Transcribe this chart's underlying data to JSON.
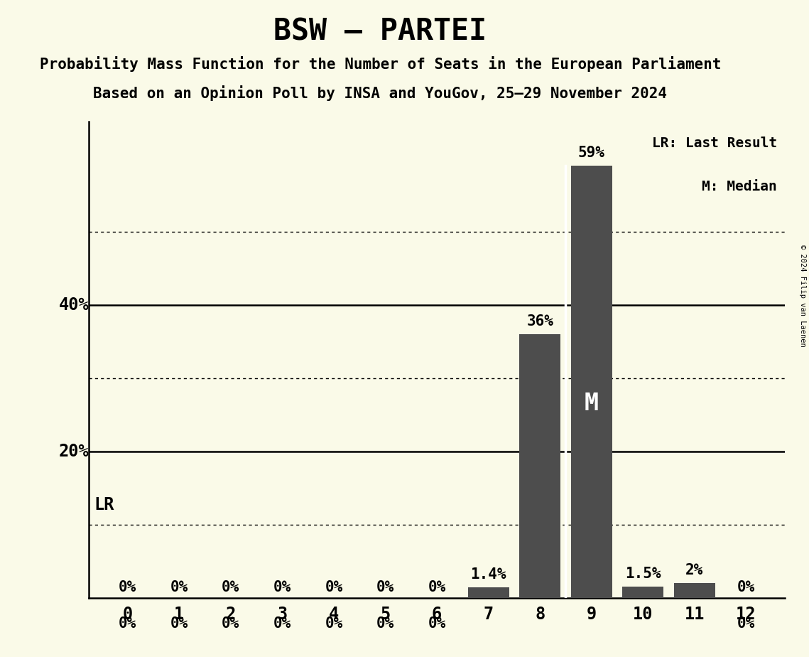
{
  "title": "BSW – PARTEI",
  "subtitle1": "Probability Mass Function for the Number of Seats in the European Parliament",
  "subtitle2": "Based on an Opinion Poll by INSA and YouGov, 25–29 November 2024",
  "copyright": "© 2024 Filip van Laenen",
  "categories": [
    0,
    1,
    2,
    3,
    4,
    5,
    6,
    7,
    8,
    9,
    10,
    11,
    12
  ],
  "values": [
    0.0,
    0.0,
    0.0,
    0.0,
    0.0,
    0.0,
    0.0,
    1.4,
    36.0,
    59.0,
    1.5,
    2.0,
    0.0
  ],
  "labels": [
    "0%",
    "0%",
    "0%",
    "0%",
    "0%",
    "0%",
    "0%",
    "1.4%",
    "36%",
    "59%",
    "1.5%",
    "2%",
    "0%"
  ],
  "bar_color": "#4d4d4d",
  "background_color": "#fafae8",
  "median_seat": 9,
  "median_label": "M",
  "lr_label": "LR",
  "legend_lr": "LR: Last Result",
  "legend_m": "M: Median",
  "solid_yticks": [
    20,
    40
  ],
  "dotted_yticks": [
    10,
    30,
    50
  ],
  "ylim": [
    0,
    65
  ],
  "title_fontsize": 30,
  "subtitle_fontsize": 15,
  "axis_fontsize": 17,
  "label_fontsize": 15,
  "legend_fontsize": 14
}
